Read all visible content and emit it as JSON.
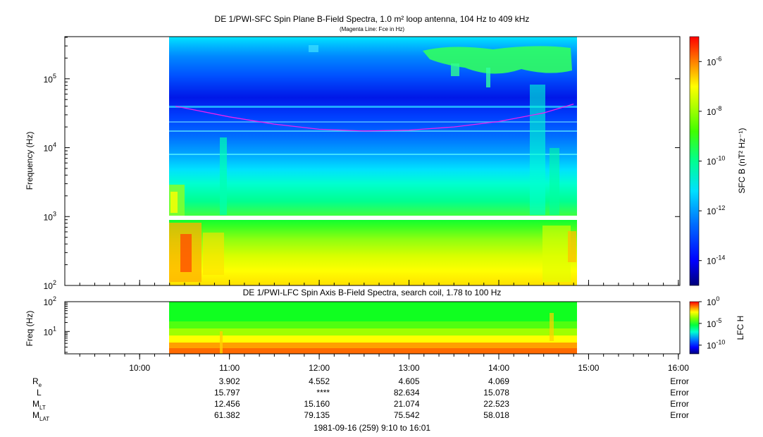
{
  "chart_data": [
    {
      "type": "heatmap",
      "title": "DE 1/PWI-SFC  Spin Plane B-Field Spectra, 1.0 m² loop antenna, 104 Hz to 409 kHz",
      "subtitle": "(Magenta Line: Fce in Hz)",
      "ylabel": "Frequency (Hz)",
      "y_scale": "log",
      "ylim": [
        100,
        409000
      ],
      "y_ticks": [
        {
          "value": 100,
          "base": "10",
          "exp": "2"
        },
        {
          "value": 1000,
          "base": "10",
          "exp": "3"
        },
        {
          "value": 10000,
          "base": "10",
          "exp": "4"
        },
        {
          "value": 100000,
          "base": "10",
          "exp": "5"
        }
      ],
      "data_span": [
        "10:20",
        "14:52"
      ],
      "colorbar": {
        "label": "SFC B (nT² Hz⁻¹)",
        "range": [
          1e-15,
          1e-05
        ],
        "ticks": [
          {
            "value": 1e-06,
            "base": "10",
            "exp": "-6"
          },
          {
            "value": 1e-08,
            "base": "10",
            "exp": "-8"
          },
          {
            "value": 1e-10,
            "base": "10",
            "exp": "-10"
          },
          {
            "value": 1e-12,
            "base": "10",
            "exp": "-12"
          },
          {
            "value": 1e-14,
            "base": "10",
            "exp": "-14"
          }
        ]
      },
      "fce_line": {
        "name": "Fce",
        "color": "#ee22ee",
        "time": [
          "10:24",
          "11:00",
          "11:30",
          "12:00",
          "12:30",
          "13:00",
          "13:30",
          "14:00",
          "14:30",
          "14:50"
        ],
        "freq_hz": [
          40000,
          28000,
          22000,
          18500,
          17500,
          18000,
          20000,
          24000,
          32000,
          43000
        ]
      }
    },
    {
      "type": "heatmap",
      "title": "DE 1/PWI-LFC  Spin Axis B-Field Spectra, search coil, 1.78 to 100 Hz",
      "ylabel": "Freq (Hz)",
      "y_scale": "log",
      "ylim": [
        1.78,
        100
      ],
      "y_ticks": [
        {
          "value": 10,
          "base": "10",
          "exp": "1"
        },
        {
          "value": 100,
          "base": "10",
          "exp": "2"
        }
      ],
      "data_span": [
        "10:20",
        "14:52"
      ],
      "colorbar": {
        "label": "LFC H",
        "range": [
          1e-12,
          1
        ],
        "ticks": [
          {
            "value": 1,
            "base": "10",
            "exp": "0"
          },
          {
            "value": 1e-05,
            "base": "10",
            "exp": "-5"
          },
          {
            "value": 1e-10,
            "base": "10",
            "exp": "-10"
          }
        ]
      },
      "x_axis": {
        "range": [
          "9:10",
          "16:01"
        ],
        "ticks": [
          "10:00",
          "11:00",
          "12:00",
          "13:00",
          "14:00",
          "15:00",
          "16:00"
        ]
      }
    }
  ],
  "ephemeris": {
    "columns": [
      "11:00",
      "12:00",
      "13:00",
      "14:00",
      "16:00"
    ],
    "rows": [
      {
        "label": "R",
        "sub": "e",
        "values": [
          "3.902",
          "4.552",
          "4.605",
          "4.069",
          "Error"
        ]
      },
      {
        "label": "L",
        "sub": "",
        "values": [
          "15.797",
          "****",
          "82.634",
          "15.078",
          "Error"
        ]
      },
      {
        "label": "M",
        "sub": "LT",
        "values": [
          "12.456",
          "15.160",
          "21.074",
          "22.523",
          "Error"
        ]
      },
      {
        "label": "M",
        "sub": "LAT",
        "values": [
          "61.382",
          "79.135",
          "75.542",
          "58.018",
          "Error"
        ]
      }
    ]
  },
  "footer": "1981-09-16 (259) 9:10 to 16:01",
  "colors": {
    "fce_line": "#ee22ee",
    "colormap": [
      "#000080",
      "#0000ff",
      "#0080ff",
      "#00ffff",
      "#00ff80",
      "#00ff00",
      "#80ff00",
      "#ffff00",
      "#ff8000",
      "#ff0000"
    ]
  }
}
